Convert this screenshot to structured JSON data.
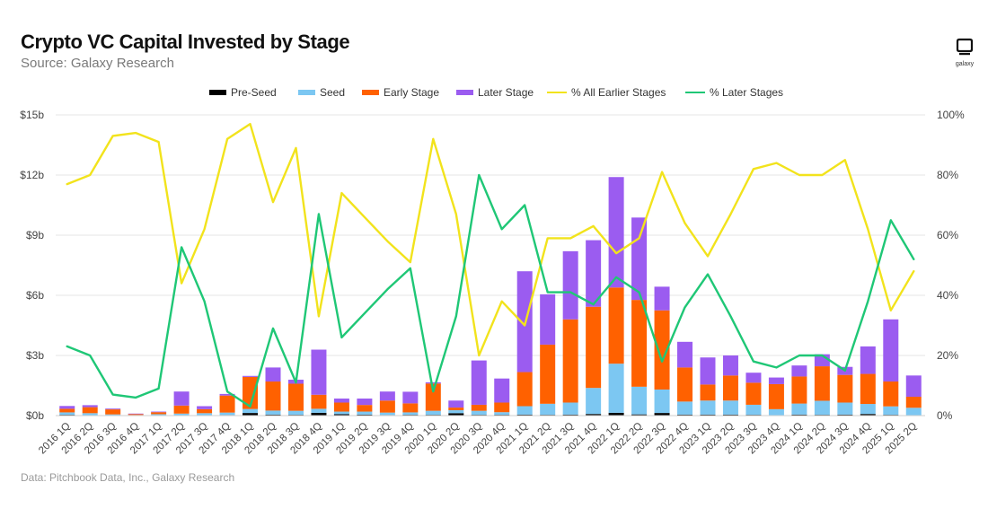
{
  "header": {
    "title": "Crypto VC Capital Invested by Stage",
    "subtitle": "Source: Galaxy Research"
  },
  "footer": {
    "note": "Data: Pitchbook Data, Inc., Galaxy Research"
  },
  "logo": {
    "text": "galaxy"
  },
  "colors": {
    "preseed": "#000000",
    "seed": "#7cc7f2",
    "early": "#ff6100",
    "later": "#9b5cf0",
    "pct_earlier": "#f2e31c",
    "pct_later": "#1fc776",
    "grid": "#e6e6e6",
    "axis_text": "#444444"
  },
  "chart_data": {
    "type": "bar",
    "stacked": true,
    "title": "Crypto VC Capital Invested by Stage",
    "categories": [
      "2016 1Q",
      "2016 2Q",
      "2016 3Q",
      "2016 4Q",
      "2017 1Q",
      "2017 2Q",
      "2017 3Q",
      "2017 4Q",
      "2018 1Q",
      "2018 2Q",
      "2018 3Q",
      "2018 4Q",
      "2019 1Q",
      "2019 2Q",
      "2019 3Q",
      "2019 4Q",
      "2020 1Q",
      "2020 2Q",
      "2020 3Q",
      "2020 4Q",
      "2021 1Q",
      "2021 2Q",
      "2021 3Q",
      "2021 4Q",
      "2022 1Q",
      "2022 2Q",
      "2022 3Q",
      "2022 4Q",
      "2023 1Q",
      "2023 2Q",
      "2023 3Q",
      "2023 4Q",
      "2024 1Q",
      "2024 2Q",
      "2024 3Q",
      "2024 4Q",
      "2025 1Q",
      "2025 2Q"
    ],
    "legend": [
      "Pre-Seed",
      "Seed",
      "Early Stage",
      "Later Stage",
      "% All Earlier Stages",
      "% Later Stages"
    ],
    "left_axis": {
      "min": 0,
      "max": 15,
      "ticks": [
        "$0b",
        "$3b",
        "$6b",
        "$9b",
        "$12b",
        "$15b"
      ]
    },
    "right_axis": {
      "min": 0,
      "max": 100,
      "ticks": [
        "0%",
        "20%",
        "40%",
        "60%",
        "80%",
        "100%"
      ]
    },
    "series": [
      {
        "name": "Pre-Seed",
        "kind": "bar",
        "axis": "left",
        "values": [
          0.04,
          0.02,
          0.01,
          0.0,
          0.02,
          0.02,
          0.02,
          0.03,
          0.13,
          0.05,
          0.04,
          0.14,
          0.07,
          0.05,
          0.03,
          0.04,
          0.04,
          0.12,
          0.04,
          0.04,
          0.05,
          0.04,
          0.05,
          0.08,
          0.14,
          0.06,
          0.13,
          0.05,
          0.05,
          0.05,
          0.04,
          0.02,
          0.05,
          0.04,
          0.05,
          0.08,
          0.04,
          0.02
        ]
      },
      {
        "name": "Seed",
        "kind": "bar",
        "axis": "left",
        "values": [
          0.12,
          0.1,
          0.05,
          0.03,
          0.05,
          0.08,
          0.1,
          0.12,
          0.2,
          0.2,
          0.2,
          0.2,
          0.13,
          0.15,
          0.12,
          0.12,
          0.2,
          0.15,
          0.2,
          0.13,
          0.42,
          0.55,
          0.6,
          1.3,
          2.45,
          1.38,
          1.17,
          0.65,
          0.7,
          0.7,
          0.5,
          0.3,
          0.55,
          0.7,
          0.6,
          0.5,
          0.42,
          0.37
        ]
      },
      {
        "name": "Early Stage",
        "kind": "bar",
        "axis": "left",
        "values": [
          0.18,
          0.3,
          0.25,
          0.05,
          0.1,
          0.4,
          0.2,
          0.85,
          1.6,
          1.45,
          1.35,
          0.7,
          0.45,
          0.33,
          0.6,
          0.45,
          1.36,
          0.13,
          0.3,
          0.48,
          1.7,
          2.95,
          4.15,
          4.05,
          3.8,
          4.33,
          3.95,
          1.7,
          0.8,
          1.25,
          1.1,
          1.25,
          1.35,
          1.72,
          1.38,
          1.5,
          1.24,
          0.55
        ]
      },
      {
        "name": "Later Stage",
        "kind": "bar",
        "axis": "left",
        "values": [
          0.14,
          0.1,
          0.04,
          0.02,
          0.03,
          0.7,
          0.15,
          0.08,
          0.05,
          0.7,
          0.2,
          2.25,
          0.2,
          0.32,
          0.45,
          0.58,
          0.06,
          0.35,
          2.21,
          1.2,
          5.03,
          2.51,
          3.4,
          3.32,
          5.51,
          4.11,
          1.18,
          1.28,
          1.35,
          1.0,
          0.5,
          0.33,
          0.55,
          0.6,
          0.4,
          1.37,
          3.1,
          1.06
        ]
      },
      {
        "name": "% All Earlier Stages",
        "kind": "line",
        "axis": "right",
        "values": [
          77,
          80,
          93,
          94,
          91,
          44,
          62,
          92,
          97,
          71,
          89,
          33,
          74,
          66,
          58,
          51,
          92,
          67,
          20,
          38,
          30,
          59,
          59,
          63,
          54,
          59,
          81,
          64,
          53,
          67,
          82,
          84,
          80,
          80,
          85,
          62,
          35,
          48
        ]
      },
      {
        "name": "% Later Stages",
        "kind": "line",
        "axis": "right",
        "values": [
          23,
          20,
          7,
          6,
          9,
          56,
          38,
          8,
          3,
          29,
          11,
          67,
          26,
          34,
          42,
          49,
          8,
          33,
          80,
          62,
          70,
          41,
          41,
          37,
          46,
          41,
          18,
          36,
          47,
          33,
          18,
          16,
          20,
          20,
          15,
          38,
          65,
          52
        ]
      }
    ]
  }
}
